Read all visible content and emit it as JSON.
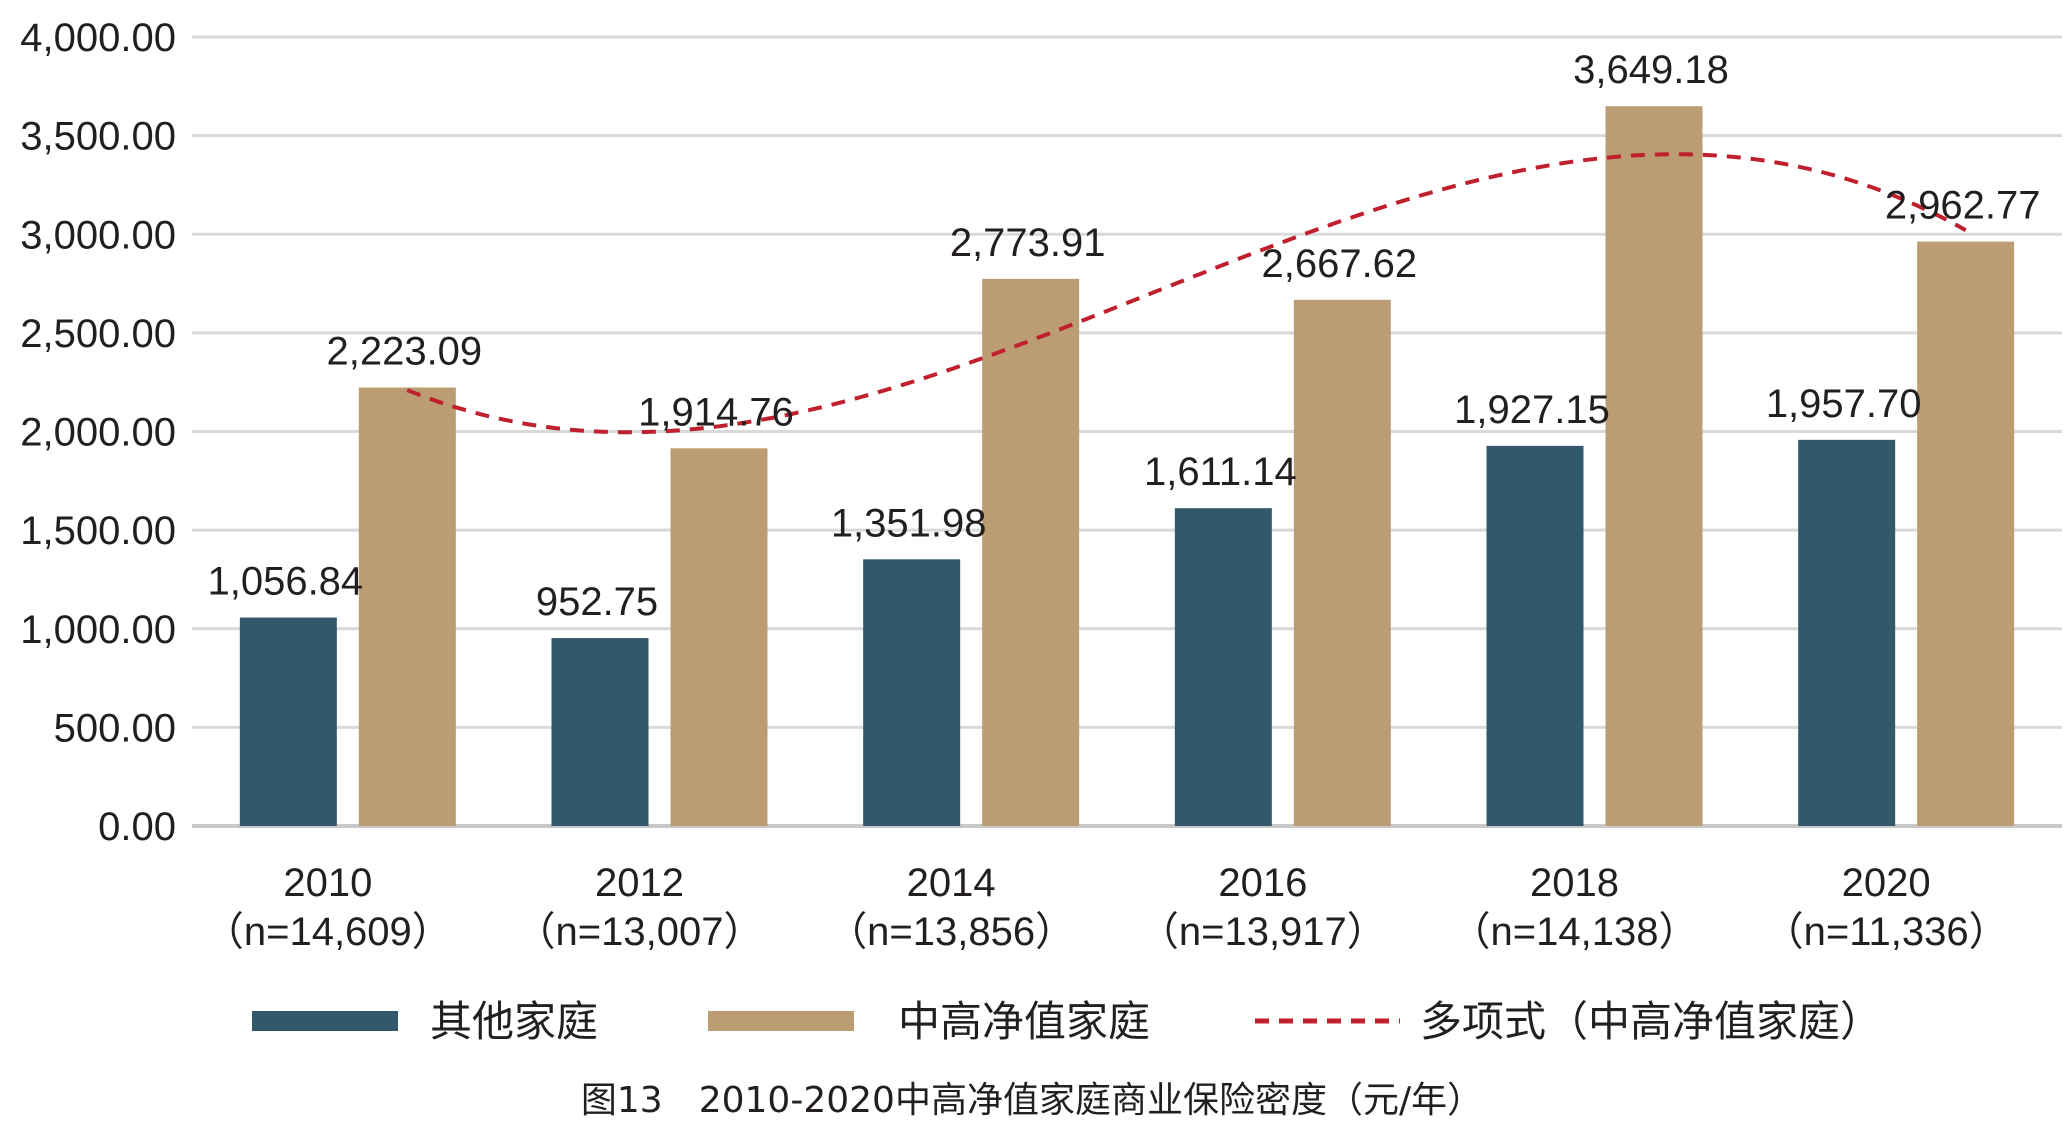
{
  "chart_data": {
    "type": "bar",
    "categories": [
      "2010",
      "2012",
      "2014",
      "2016",
      "2018",
      "2020"
    ],
    "category_sublabels": [
      "（n=14,609）",
      "（n=13,007）",
      "（n=13,856）",
      "（n=13,917）",
      "（n=14,138）",
      "（n=11,336）"
    ],
    "series": [
      {
        "name": "其他家庭",
        "color": "#31596b",
        "values": [
          1056.84,
          952.75,
          1351.98,
          1611.14,
          1927.15,
          1957.7
        ],
        "labels": [
          "1,056.84",
          "952.75",
          "1,351.98",
          "1,611.14",
          "1,927.15",
          "1,957.70"
        ]
      },
      {
        "name": "中高净值家庭",
        "color": "#bc9c73",
        "values": [
          2223.09,
          1914.76,
          2773.91,
          2667.62,
          3649.18,
          2962.77
        ],
        "labels": [
          "2,223.09",
          "1,914.76",
          "2,773.91",
          "2,667.62",
          "3,649.18",
          "2,962.77"
        ]
      }
    ],
    "trendline": {
      "name": "多项式（中高净值家庭）",
      "type": "polynomial",
      "color": "#c0202e",
      "style": "dashed"
    },
    "ylim": [
      0,
      4000
    ],
    "yticks": [
      0,
      500,
      1000,
      1500,
      2000,
      2500,
      3000,
      3500,
      4000
    ],
    "ytick_labels": [
      "0.00",
      "500.00",
      "1,000.00",
      "1,500.00",
      "2,000.00",
      "2,500.00",
      "3,000.00",
      "3,500.00",
      "4,000.00"
    ],
    "grid": true,
    "legend_position": "bottom",
    "caption": "图13　2010-2020中高净值家庭商业保险密度（元/年）"
  }
}
